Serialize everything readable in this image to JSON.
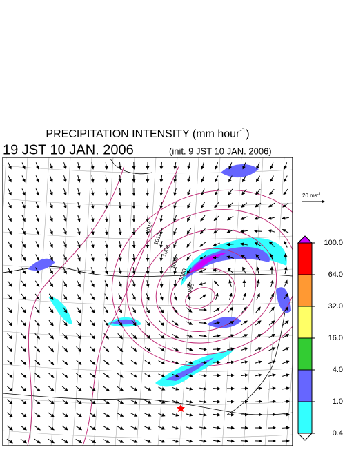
{
  "header": {
    "title": "PRECIPITATION INTENSITY (mm hour",
    "title_sup": "-1",
    "title_end": ")",
    "valid_time": "19 JST 10 JAN. 2006",
    "init_time": "(init. 9 JST 10 JAN. 2006)"
  },
  "wind_scale": {
    "label": "20 ms",
    "sup": "-1"
  },
  "colorbar": {
    "levels": [
      {
        "value": 100,
        "label": "100.0",
        "color": "#ff0000"
      },
      {
        "value": 64,
        "label": "64.0",
        "color": "#ff9933"
      },
      {
        "value": 32,
        "label": "32.0",
        "color": "#ffff66"
      },
      {
        "value": 16,
        "label": "16.0",
        "color": "#33cc33"
      },
      {
        "value": 4,
        "label": "4.0",
        "color": "#6666ff"
      },
      {
        "value": 1,
        "label": "1.0",
        "color": "#33ffff"
      },
      {
        "value": 0.4,
        "label": "0.4",
        "color": "#ffffff"
      }
    ],
    "top_color": "#cc00ff"
  },
  "isobar_labels": [
    "996",
    "1000",
    "1004",
    "1008",
    "1012",
    "1016"
  ]
}
